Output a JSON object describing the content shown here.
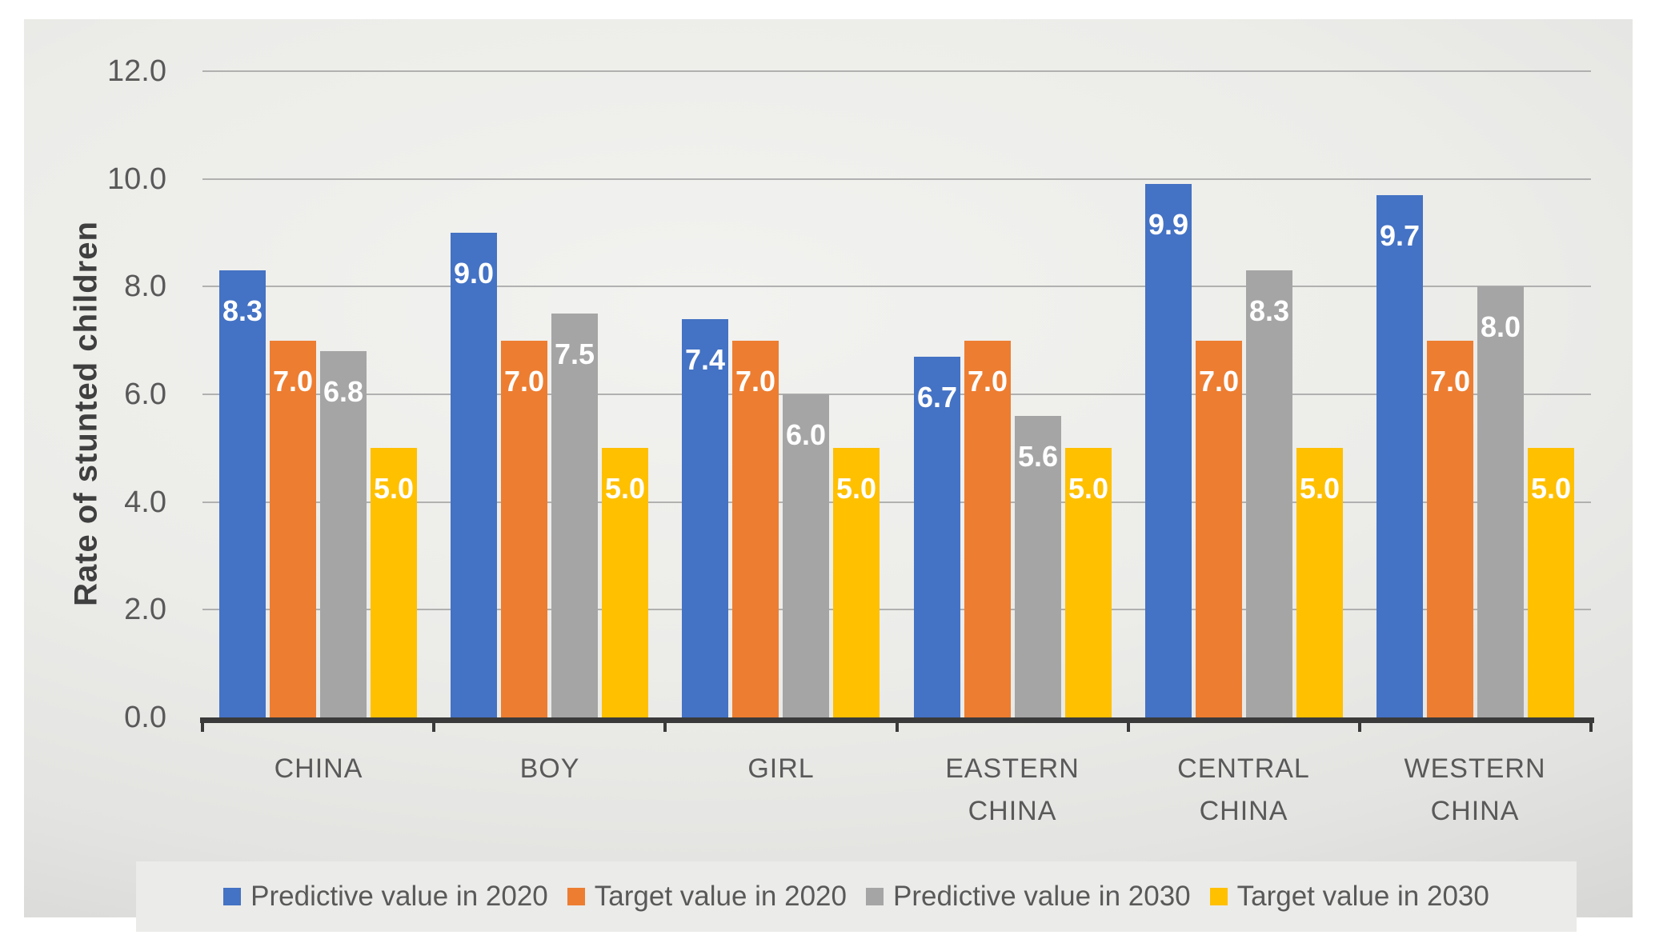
{
  "chart_data": {
    "type": "bar",
    "title": "",
    "ylabel": "Rate of stunted children",
    "xlabel": "",
    "ylim": [
      0,
      12
    ],
    "ytick_step": 2,
    "ytick_labels": [
      "0.0",
      "2.0",
      "4.0",
      "6.0",
      "8.0",
      "10.0",
      "12.0"
    ],
    "categories": [
      "CHINA",
      "BOY",
      "GIRL",
      "EASTERN CHINA",
      "CENTRAL CHINA",
      "WESTERN CHINA"
    ],
    "series": [
      {
        "name": "Predictive value in 2020",
        "color": "#4472C4",
        "values": [
          8.3,
          9.0,
          7.4,
          6.7,
          9.9,
          9.7
        ]
      },
      {
        "name": "Target value in 2020",
        "color": "#ED7D31",
        "values": [
          7.0,
          7.0,
          7.0,
          7.0,
          7.0,
          7.0
        ]
      },
      {
        "name": "Predictive value in 2030",
        "color": "#A5A5A5",
        "values": [
          6.8,
          7.5,
          6.0,
          5.6,
          8.3,
          8.0
        ]
      },
      {
        "name": "Target value in 2030",
        "color": "#FFC000",
        "values": [
          5.0,
          5.0,
          5.0,
          5.0,
          5.0,
          5.0
        ]
      }
    ],
    "value_labels_shown": true,
    "value_label_decimals": 1,
    "value_label_color": "#ffffff",
    "grid": true,
    "legend_position": "bottom"
  },
  "style_colors": {
    "axis_line": "#3a3a3a",
    "gridline": "#a6a6a6",
    "tick_label": "#595959",
    "category_label": "#595959",
    "legend_text": "#595959",
    "axis_title": "#404040",
    "legend_background": "#ebebe9"
  }
}
